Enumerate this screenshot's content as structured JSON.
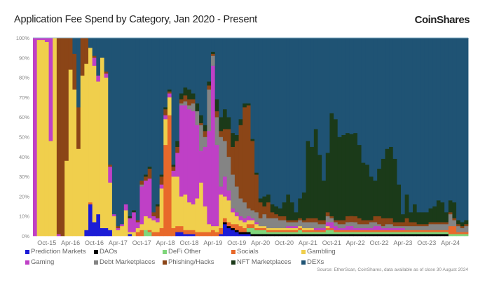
{
  "title": "Application Fee Spend by Category, Jan 2020 - Present",
  "logo_text": "CoinShares",
  "source": "Source: EtherScan, CoinShares, data available as of close 30 August 2024",
  "chart_data": {
    "type": "bar",
    "stacked": true,
    "normalized_percent": true,
    "title": "Application Fee Spend by Category, Jan 2020 - Present",
    "xlabel": "",
    "ylabel": "",
    "ylim": [
      0,
      100
    ],
    "y_ticks": [
      "0%",
      "10%",
      "20%",
      "30%",
      "40%",
      "50%",
      "60%",
      "70%",
      "80%",
      "90%",
      "100%"
    ],
    "x_tick_labels": [
      "Oct-15",
      "Apr-16",
      "Oct-16",
      "Apr-17",
      "Oct-17",
      "Apr-18",
      "Oct-18",
      "Apr-19",
      "Oct-19",
      "Apr-20",
      "Oct-20",
      "Apr-21",
      "Oct-21",
      "Apr-22",
      "Oct-22",
      "Apr-23",
      "Oct-23",
      "Apr-24"
    ],
    "grid": false,
    "legend_placement": "bottom",
    "series": [
      {
        "name": "Prediction Markets",
        "color": "#1c1cd6"
      },
      {
        "name": "DAOs",
        "color": "#000000"
      },
      {
        "name": "DeFi Other",
        "color": "#7fd67b"
      },
      {
        "name": "Socials",
        "color": "#e8692b"
      },
      {
        "name": "Gambling",
        "color": "#f0cf4c"
      },
      {
        "name": "Gaming",
        "color": "#bf40c6"
      },
      {
        "name": "Debt Marketplaces",
        "color": "#848484"
      },
      {
        "name": "Phishing/Hacks",
        "color": "#8b4517"
      },
      {
        "name": "NFT Marketplaces",
        "color": "#1b3a19"
      },
      {
        "name": "DEXs",
        "color": "#1f5374"
      }
    ],
    "categories": [
      "Jul-15",
      "Aug-15",
      "Sep-15",
      "Oct-15",
      "Nov-15",
      "Dec-15",
      "Jan-16",
      "Feb-16",
      "Mar-16",
      "Apr-16",
      "May-16",
      "Jun-16",
      "Jul-16",
      "Aug-16",
      "Sep-16",
      "Oct-16",
      "Nov-16",
      "Dec-16",
      "Jan-17",
      "Feb-17",
      "Mar-17",
      "Apr-17",
      "May-17",
      "Jun-17",
      "Jul-17",
      "Aug-17",
      "Sep-17",
      "Oct-17",
      "Nov-17",
      "Dec-17",
      "Jan-18",
      "Feb-18",
      "Mar-18",
      "Apr-18",
      "May-18",
      "Jun-18",
      "Jul-18",
      "Aug-18",
      "Sep-18",
      "Oct-18",
      "Nov-18",
      "Dec-18",
      "Jan-19",
      "Feb-19",
      "Mar-19",
      "Apr-19",
      "May-19",
      "Jun-19",
      "Jul-19",
      "Aug-19",
      "Sep-19",
      "Oct-19",
      "Nov-19",
      "Dec-19",
      "Jan-20",
      "Feb-20",
      "Mar-20",
      "Apr-20",
      "May-20",
      "Jun-20",
      "Jul-20",
      "Aug-20",
      "Sep-20",
      "Oct-20",
      "Nov-20",
      "Dec-20",
      "Jan-21",
      "Feb-21",
      "Mar-21",
      "Apr-21",
      "May-21",
      "Jun-21",
      "Jul-21",
      "Aug-21",
      "Sep-21",
      "Oct-21",
      "Nov-21",
      "Dec-21",
      "Jan-22",
      "Feb-22",
      "Mar-22",
      "Apr-22",
      "May-22",
      "Jun-22",
      "Jul-22",
      "Aug-22",
      "Sep-22",
      "Oct-22",
      "Nov-22",
      "Dec-22",
      "Jan-23",
      "Feb-23",
      "Mar-23",
      "Apr-23",
      "May-23",
      "Jun-23",
      "Jul-23",
      "Aug-23",
      "Sep-23",
      "Oct-23",
      "Nov-23",
      "Dec-23",
      "Jan-24",
      "Feb-24",
      "Mar-24",
      "Apr-24",
      "May-24",
      "Jun-24",
      "Jul-24",
      "Aug-24"
    ],
    "values_by_month": [
      [
        0,
        0,
        0,
        0,
        0,
        100,
        0,
        0,
        0,
        0
      ],
      [
        0,
        0,
        0,
        0,
        99,
        1,
        0,
        0,
        0,
        0
      ],
      [
        0,
        0,
        0,
        0,
        99,
        1,
        0,
        0,
        0,
        0
      ],
      [
        0,
        0,
        0,
        0,
        98,
        2,
        0,
        0,
        0,
        0
      ],
      [
        0,
        0,
        0,
        0,
        48,
        52,
        0,
        0,
        0,
        0
      ],
      [
        0,
        0,
        0,
        0,
        100,
        0,
        0,
        0,
        0,
        0
      ],
      [
        0,
        0,
        0,
        0,
        0,
        1,
        0,
        99,
        0,
        0
      ],
      [
        0,
        0,
        0,
        0,
        0,
        0,
        0,
        100,
        0,
        0
      ],
      [
        0,
        0,
        0,
        0,
        38,
        0,
        0,
        62,
        0,
        0
      ],
      [
        0,
        0,
        0,
        0,
        84,
        0,
        0,
        16,
        0,
        0
      ],
      [
        0,
        0,
        0,
        0,
        74,
        0,
        0,
        18,
        0,
        8
      ],
      [
        0,
        0,
        0,
        0,
        44,
        0,
        0,
        21,
        0,
        35
      ],
      [
        0,
        0,
        0,
        0,
        81,
        0,
        0,
        19,
        0,
        0
      ],
      [
        3,
        0,
        0,
        0,
        84,
        0,
        0,
        13,
        0,
        0
      ],
      [
        16,
        0,
        0,
        1,
        78,
        0,
        0,
        0,
        0,
        5
      ],
      [
        7,
        0,
        0,
        0,
        79,
        4,
        0,
        1,
        0,
        9
      ],
      [
        11,
        0,
        0,
        0,
        67,
        3,
        0,
        0,
        0,
        19
      ],
      [
        4,
        0,
        0,
        0,
        86,
        0,
        0,
        0,
        0,
        10
      ],
      [
        4,
        0,
        0,
        0,
        76,
        2,
        0,
        1,
        0,
        17
      ],
      [
        3,
        0,
        0,
        0,
        24,
        8,
        0,
        1,
        0,
        64
      ],
      [
        0,
        0,
        0,
        0,
        10,
        1,
        0,
        0,
        0,
        89
      ],
      [
        0,
        0,
        0,
        0,
        3,
        1,
        0,
        1,
        0,
        95
      ],
      [
        0,
        0,
        0,
        0,
        5,
        1,
        0,
        0,
        0,
        94
      ],
      [
        0,
        0,
        0,
        0,
        13,
        3,
        0,
        0,
        0,
        84
      ],
      [
        1,
        0,
        0,
        0,
        1,
        7,
        0,
        0,
        1,
        90
      ],
      [
        0,
        0,
        0,
        0,
        2,
        10,
        0,
        0,
        1,
        87
      ],
      [
        0,
        0,
        0,
        2,
        2,
        3,
        0,
        1,
        0,
        92
      ],
      [
        0,
        0,
        0,
        3,
        3,
        19,
        1,
        2,
        0,
        72
      ],
      [
        0,
        0,
        3,
        0,
        7,
        18,
        0,
        2,
        1,
        69
      ],
      [
        0,
        0,
        2,
        1,
        6,
        20,
        0,
        5,
        1,
        65
      ],
      [
        0,
        0,
        0,
        2,
        6,
        2,
        0,
        2,
        0,
        88
      ],
      [
        0,
        0,
        0,
        2,
        5,
        2,
        0,
        6,
        1,
        84
      ],
      [
        0,
        0,
        0,
        4,
        20,
        2,
        0,
        4,
        1,
        69
      ],
      [
        0,
        0,
        0,
        46,
        13,
        2,
        0,
        3,
        1,
        35
      ],
      [
        0,
        0,
        0,
        61,
        9,
        2,
        0,
        1,
        1,
        26
      ],
      [
        0,
        0,
        0,
        4,
        26,
        3,
        0,
        2,
        1,
        64
      ],
      [
        2,
        0,
        0,
        3,
        25,
        12,
        0,
        3,
        3,
        52
      ],
      [
        2,
        0,
        0,
        3,
        15,
        46,
        1,
        2,
        3,
        28
      ],
      [
        1,
        0,
        0,
        2,
        18,
        45,
        2,
        3,
        4,
        25
      ],
      [
        1,
        0,
        0,
        2,
        14,
        47,
        2,
        3,
        5,
        26
      ],
      [
        1,
        0,
        0,
        2,
        13,
        47,
        4,
        2,
        3,
        28
      ],
      [
        0,
        0,
        0,
        2,
        17,
        37,
        7,
        0,
        4,
        33
      ],
      [
        0,
        0,
        0,
        2,
        25,
        16,
        13,
        1,
        4,
        39
      ],
      [
        0,
        0,
        0,
        2,
        13,
        30,
        5,
        3,
        3,
        44
      ],
      [
        0,
        0,
        0,
        2,
        4,
        47,
        21,
        2,
        2,
        22
      ],
      [
        0,
        0,
        0,
        3,
        2,
        81,
        5,
        1,
        1,
        7
      ],
      [
        0,
        0,
        0,
        2,
        3,
        41,
        14,
        3,
        6,
        31
      ],
      [
        1,
        0,
        0,
        3,
        17,
        4,
        25,
        3,
        7,
        40
      ],
      [
        6,
        1,
        0,
        2,
        11,
        10,
        18,
        6,
        10,
        36
      ],
      [
        4,
        1,
        0,
        2,
        11,
        5,
        17,
        14,
        6,
        40
      ],
      [
        3,
        1,
        0,
        2,
        6,
        2,
        17,
        14,
        7,
        48
      ],
      [
        2,
        1,
        0,
        3,
        4,
        2,
        13,
        23,
        3,
        49
      ],
      [
        1,
        1,
        0,
        3,
        3,
        2,
        9,
        37,
        3,
        41
      ],
      [
        1,
        1,
        0,
        2,
        3,
        2,
        8,
        48,
        2,
        33
      ],
      [
        1,
        1,
        2,
        2,
        2,
        2,
        4,
        52,
        1,
        33
      ],
      [
        0,
        1,
        3,
        2,
        2,
        1,
        4,
        35,
        1,
        51
      ],
      [
        0,
        1,
        2,
        1,
        2,
        1,
        5,
        19,
        1,
        68
      ],
      [
        0,
        1,
        2,
        1,
        1,
        0,
        4,
        8,
        2,
        81
      ],
      [
        0,
        1,
        2,
        1,
        1,
        0,
        6,
        4,
        5,
        80
      ],
      [
        0,
        1,
        1,
        1,
        1,
        0,
        5,
        8,
        4,
        79
      ],
      [
        0,
        1,
        1,
        1,
        1,
        0,
        5,
        3,
        4,
        84
      ],
      [
        0,
        1,
        1,
        1,
        1,
        0,
        5,
        2,
        4,
        85
      ],
      [
        0,
        1,
        1,
        1,
        1,
        0,
        4,
        2,
        4,
        86
      ],
      [
        0,
        1,
        1,
        1,
        1,
        0,
        4,
        2,
        7,
        83
      ],
      [
        0,
        1,
        1,
        1,
        1,
        1,
        2,
        1,
        13,
        79
      ],
      [
        0,
        1,
        1,
        1,
        1,
        1,
        2,
        1,
        9,
        83
      ],
      [
        0,
        1,
        1,
        1,
        1,
        1,
        2,
        1,
        4,
        88
      ],
      [
        0,
        1,
        2,
        1,
        1,
        0,
        3,
        1,
        10,
        81
      ],
      [
        0,
        1,
        1,
        1,
        1,
        0,
        3,
        1,
        14,
        78
      ],
      [
        0,
        1,
        1,
        1,
        1,
        0,
        3,
        2,
        39,
        52
      ],
      [
        0,
        1,
        1,
        1,
        1,
        0,
        3,
        2,
        36,
        55
      ],
      [
        0,
        1,
        1,
        1,
        0,
        1,
        3,
        2,
        45,
        46
      ],
      [
        0,
        1,
        1,
        1,
        0,
        1,
        2,
        2,
        33,
        59
      ],
      [
        0,
        1,
        1,
        1,
        0,
        1,
        2,
        2,
        20,
        72
      ],
      [
        0,
        1,
        2,
        1,
        1,
        2,
        3,
        2,
        30,
        58
      ],
      [
        0,
        1,
        2,
        1,
        0,
        3,
        2,
        1,
        52,
        38
      ],
      [
        0,
        1,
        1,
        1,
        0,
        2,
        2,
        1,
        51,
        41
      ],
      [
        0,
        1,
        1,
        1,
        0,
        1,
        2,
        2,
        42,
        50
      ],
      [
        0,
        1,
        1,
        1,
        0,
        1,
        2,
        2,
        43,
        49
      ],
      [
        0,
        1,
        1,
        1,
        0,
        2,
        2,
        3,
        42,
        48
      ],
      [
        0,
        1,
        1,
        1,
        0,
        2,
        2,
        3,
        41,
        48
      ],
      [
        0,
        1,
        1,
        1,
        0,
        1,
        3,
        3,
        42,
        48
      ],
      [
        0,
        1,
        1,
        1,
        0,
        1,
        2,
        3,
        37,
        54
      ],
      [
        0,
        1,
        1,
        1,
        0,
        1,
        2,
        2,
        29,
        63
      ],
      [
        0,
        1,
        1,
        1,
        0,
        1,
        2,
        2,
        28,
        64
      ],
      [
        0,
        1,
        1,
        1,
        0,
        1,
        3,
        1,
        22,
        70
      ],
      [
        0,
        1,
        1,
        1,
        0,
        2,
        2,
        3,
        18,
        72
      ],
      [
        0,
        1,
        1,
        1,
        0,
        2,
        1,
        4,
        24,
        66
      ],
      [
        0,
        1,
        1,
        1,
        0,
        1,
        1,
        4,
        30,
        61
      ],
      [
        0,
        1,
        1,
        1,
        0,
        1,
        2,
        3,
        35,
        56
      ],
      [
        0,
        1,
        1,
        1,
        0,
        1,
        2,
        3,
        36,
        55
      ],
      [
        0,
        1,
        1,
        1,
        0,
        1,
        1,
        2,
        32,
        61
      ],
      [
        0,
        1,
        1,
        1,
        0,
        1,
        1,
        2,
        19,
        74
      ],
      [
        0,
        1,
        1,
        1,
        0,
        1,
        1,
        2,
        4,
        89
      ],
      [
        0,
        1,
        1,
        1,
        0,
        0,
        2,
        4,
        12,
        79
      ],
      [
        0,
        1,
        1,
        1,
        0,
        0,
        2,
        2,
        5,
        88
      ],
      [
        0,
        1,
        1,
        1,
        0,
        0,
        2,
        2,
        9,
        84
      ],
      [
        0,
        1,
        1,
        1,
        0,
        0,
        2,
        1,
        6,
        88
      ],
      [
        0,
        1,
        1,
        1,
        0,
        0,
        2,
        1,
        6,
        88
      ],
      [
        0,
        1,
        1,
        1,
        0,
        0,
        2,
        1,
        6,
        88
      ],
      [
        0,
        1,
        1,
        1,
        0,
        0,
        3,
        1,
        7,
        86
      ],
      [
        0,
        1,
        1,
        1,
        0,
        0,
        3,
        1,
        8,
        85
      ],
      [
        0,
        1,
        1,
        1,
        0,
        0,
        3,
        1,
        11,
        82
      ],
      [
        0,
        1,
        1,
        1,
        0,
        0,
        3,
        1,
        10,
        83
      ],
      [
        0,
        1,
        1,
        1,
        0,
        0,
        3,
        1,
        5,
        88
      ],
      [
        0,
        0,
        1,
        4,
        0,
        0,
        6,
        1,
        6,
        82
      ],
      [
        0,
        0,
        1,
        4,
        0,
        0,
        3,
        1,
        8,
        83
      ],
      [
        0,
        0,
        1,
        1,
        0,
        0,
        3,
        1,
        2,
        92
      ],
      [
        0,
        0,
        1,
        1,
        0,
        0,
        2,
        1,
        2,
        93
      ],
      [
        0,
        0,
        1,
        1,
        0,
        0,
        3,
        1,
        2,
        92
      ]
    ]
  }
}
